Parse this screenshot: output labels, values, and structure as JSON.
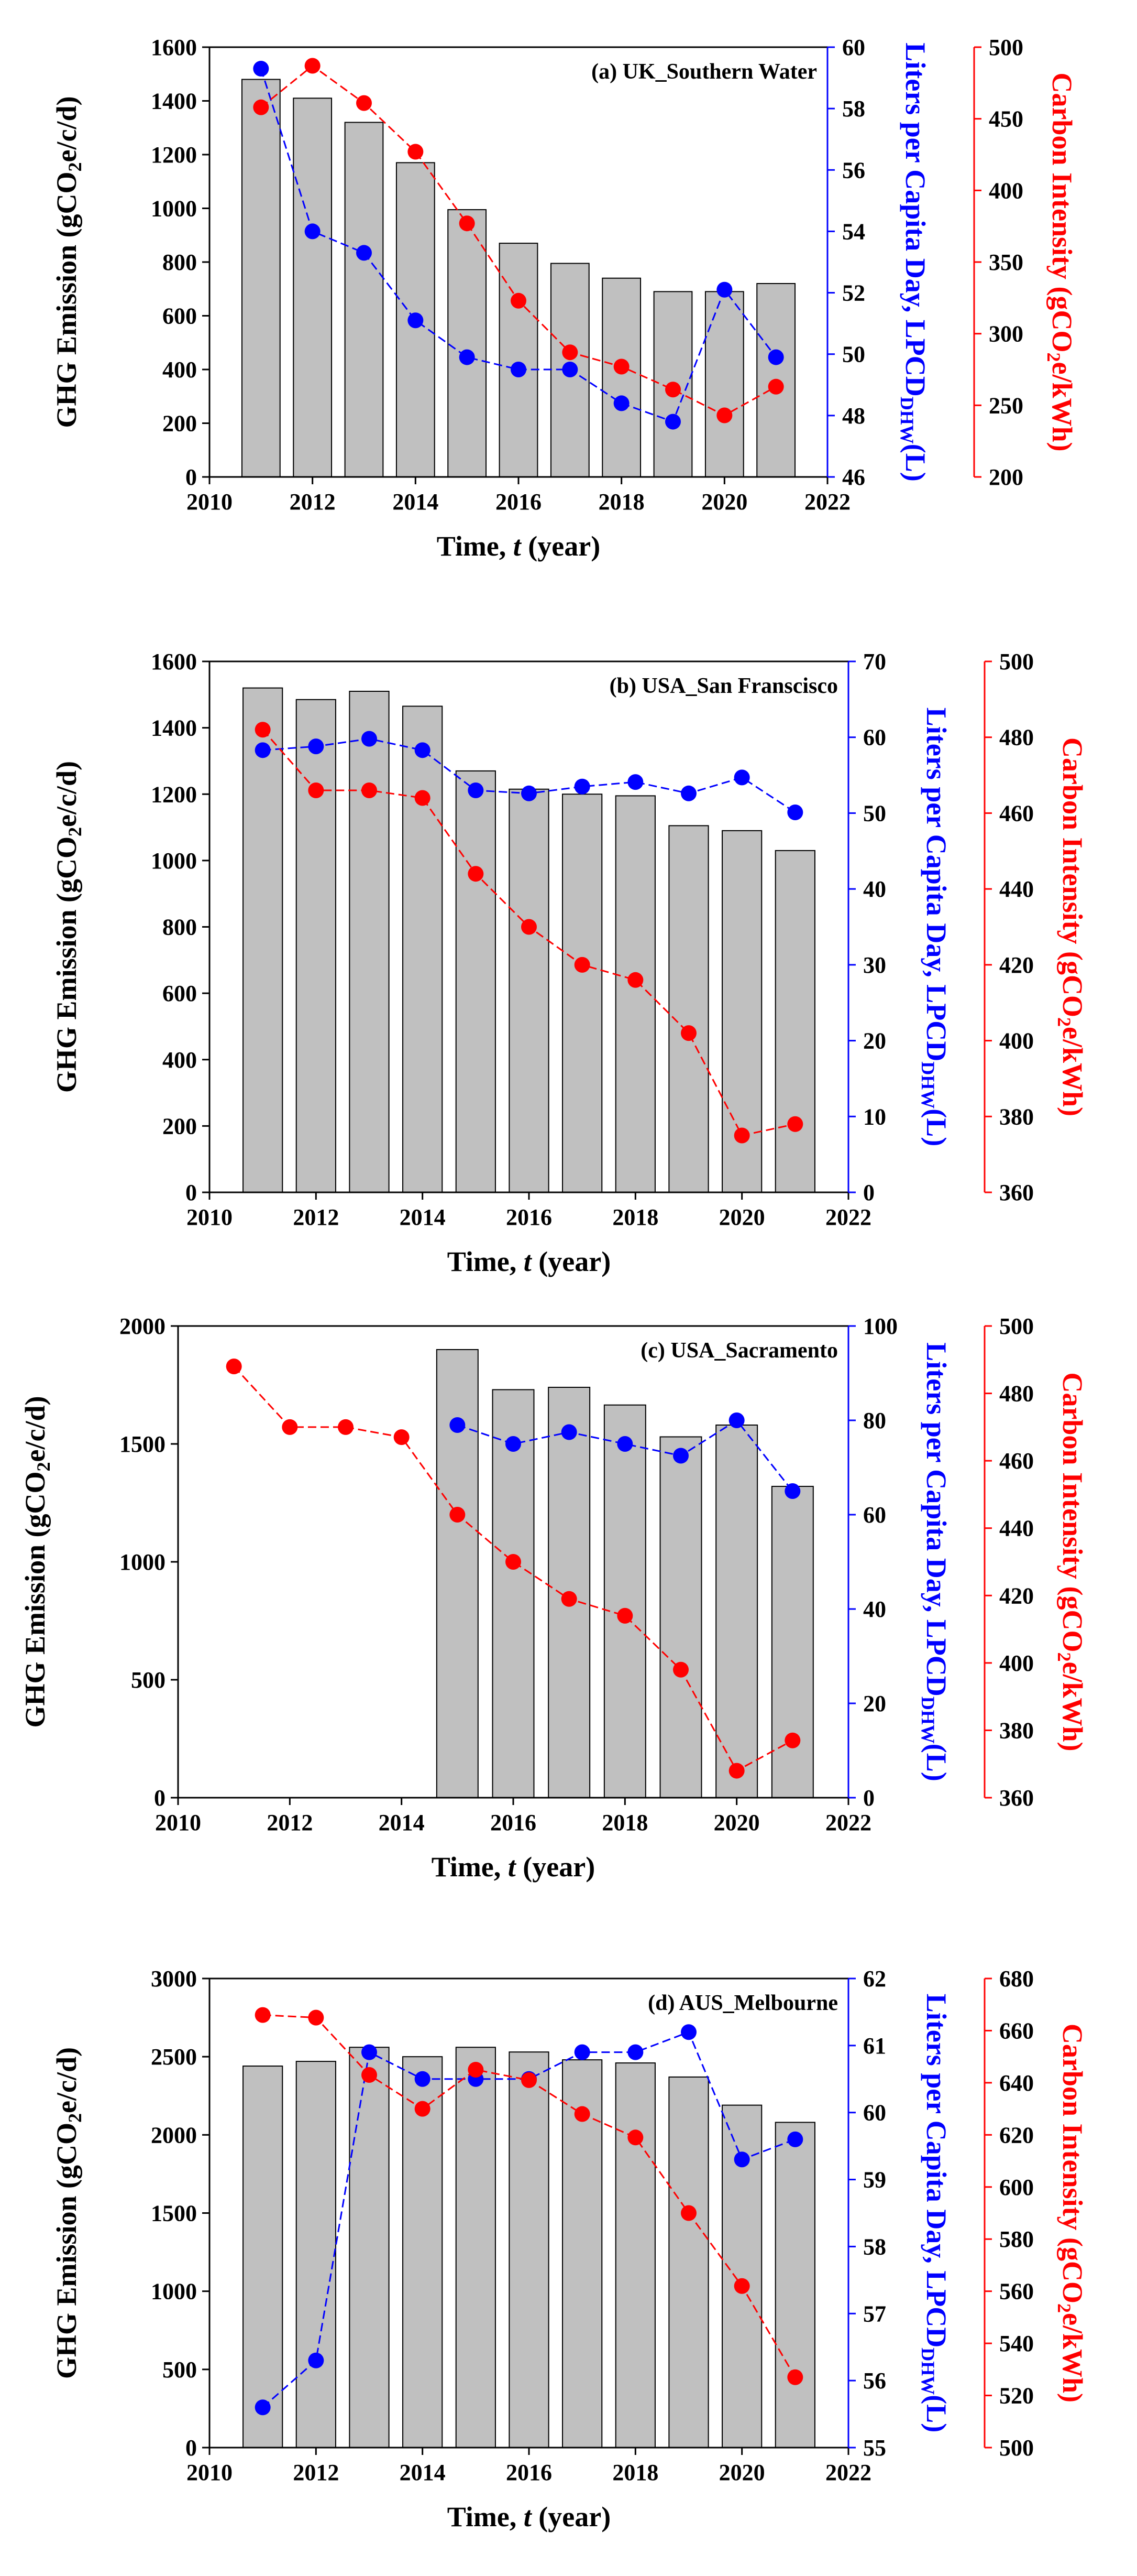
{
  "chart_data": [
    {
      "type": "bar",
      "title": "(a) UK_Southern Water",
      "xlabel": "Time, t (year)",
      "ylabel": "GHG Emission (gCO2e/c/d)",
      "y2label": "Liters per Capita Day, LPCDDHW(L)",
      "y3label": "Carbon Intensity (gCO2e/kWh)",
      "xlim": [
        2010,
        2022
      ],
      "xticks": [
        2010,
        2012,
        2014,
        2016,
        2018,
        2020,
        2022
      ],
      "ylim": [
        0,
        1600
      ],
      "yticks": [
        0,
        200,
        400,
        600,
        800,
        1000,
        1200,
        1400,
        1600
      ],
      "y2lim": [
        46,
        60
      ],
      "y2ticks": [
        46,
        48,
        50,
        52,
        54,
        56,
        58,
        60
      ],
      "y3lim": [
        200,
        500
      ],
      "y3ticks": [
        200,
        250,
        300,
        350,
        400,
        450,
        500
      ],
      "colors": {
        "bar": "#c0c0c0",
        "lpcd": "#0000ff",
        "intensity": "#ff0000"
      },
      "series": [
        {
          "name": "GHG Emission",
          "axis": "y",
          "x": [
            2011,
            2012,
            2013,
            2014,
            2015,
            2016,
            2017,
            2018,
            2019,
            2020,
            2021
          ],
          "values": [
            1480,
            1410,
            1320,
            1170,
            995,
            870,
            795,
            740,
            690,
            690,
            720
          ]
        },
        {
          "name": "LPCD",
          "axis": "y2",
          "x": [
            2011,
            2012,
            2013,
            2014,
            2015,
            2016,
            2017,
            2018,
            2019,
            2020,
            2021
          ],
          "values": [
            59.3,
            54.0,
            53.3,
            51.1,
            49.9,
            49.5,
            49.5,
            48.4,
            47.8,
            52.1,
            49.9
          ]
        },
        {
          "name": "Carbon Intensity",
          "axis": "y3",
          "x": [
            2011,
            2012,
            2013,
            2014,
            2015,
            2016,
            2017,
            2018,
            2019,
            2020,
            2021
          ],
          "values": [
            458,
            487,
            461,
            427,
            377,
            323,
            287,
            277,
            261,
            243,
            263
          ]
        }
      ]
    },
    {
      "type": "bar",
      "title": "(b) USA_San Franscisco",
      "xlabel": "Time, t (year)",
      "ylabel": "GHG Emission (gCO2e/c/d)",
      "y2label": "Liters per Capita Day, LPCDDHW(L)",
      "y3label": "Carbon Intensity (gCO2e/kWh)",
      "xlim": [
        2010,
        2022
      ],
      "xticks": [
        2010,
        2012,
        2014,
        2016,
        2018,
        2020,
        2022
      ],
      "ylim": [
        0,
        1600
      ],
      "yticks": [
        0,
        200,
        400,
        600,
        800,
        1000,
        1200,
        1400,
        1600
      ],
      "y2lim": [
        0,
        70
      ],
      "y2ticks": [
        0,
        10,
        20,
        30,
        40,
        50,
        60,
        70
      ],
      "y3lim": [
        360,
        500
      ],
      "y3ticks": [
        360,
        380,
        400,
        420,
        440,
        460,
        480,
        500
      ],
      "colors": {
        "bar": "#c0c0c0",
        "lpcd": "#0000ff",
        "intensity": "#ff0000"
      },
      "series": [
        {
          "name": "GHG Emission",
          "axis": "y",
          "x": [
            2011,
            2012,
            2013,
            2014,
            2015,
            2016,
            2017,
            2018,
            2019,
            2020,
            2021
          ],
          "values": [
            1520,
            1485,
            1510,
            1465,
            1270,
            1215,
            1200,
            1195,
            1105,
            1090,
            1030
          ]
        },
        {
          "name": "LPCD",
          "axis": "y2",
          "x": [
            2011,
            2012,
            2013,
            2014,
            2015,
            2016,
            2017,
            2018,
            2019,
            2020,
            2021
          ],
          "values": [
            58.3,
            58.8,
            59.8,
            58.3,
            53.0,
            52.6,
            53.5,
            54.1,
            52.6,
            54.7,
            50.1
          ]
        },
        {
          "name": "Carbon Intensity",
          "axis": "y3",
          "x": [
            2011,
            2012,
            2013,
            2014,
            2015,
            2016,
            2017,
            2018,
            2019,
            2020,
            2021
          ],
          "values": [
            482,
            466,
            466,
            464,
            444,
            430,
            420,
            416,
            402,
            375,
            378
          ]
        }
      ]
    },
    {
      "type": "bar",
      "title": "(c) USA_Sacramento",
      "xlabel": "Time, t (year)",
      "ylabel": "GHG Emission (gCO2e/c/d)",
      "y2label": "Liters per Capita Day, LPCDDHW(L)",
      "y3label": "Carbon Intensity (gCO2e/kWh)",
      "xlim": [
        2010,
        2022
      ],
      "xticks": [
        2010,
        2012,
        2014,
        2016,
        2018,
        2020,
        2022
      ],
      "ylim": [
        0,
        2000
      ],
      "yticks": [
        0,
        500,
        1000,
        1500,
        2000
      ],
      "y2lim": [
        0,
        100
      ],
      "y2ticks": [
        0,
        20,
        40,
        60,
        80,
        100
      ],
      "y3lim": [
        360,
        500
      ],
      "y3ticks": [
        360,
        380,
        400,
        420,
        440,
        460,
        480,
        500
      ],
      "colors": {
        "bar": "#c0c0c0",
        "lpcd": "#0000ff",
        "intensity": "#ff0000"
      },
      "series": [
        {
          "name": "GHG Emission",
          "axis": "y",
          "x": [
            2015,
            2016,
            2017,
            2018,
            2019,
            2020,
            2021
          ],
          "values": [
            1900,
            1730,
            1740,
            1665,
            1530,
            1580,
            1320
          ]
        },
        {
          "name": "LPCD",
          "axis": "y2",
          "x": [
            2015,
            2016,
            2017,
            2018,
            2019,
            2020,
            2021
          ],
          "values": [
            79.0,
            75.0,
            77.5,
            75.0,
            72.5,
            80.0,
            65.0
          ]
        },
        {
          "name": "Carbon Intensity",
          "axis": "y3",
          "x": [
            2011,
            2012,
            2013,
            2014,
            2015,
            2016,
            2017,
            2018,
            2019,
            2020,
            2021
          ],
          "values": [
            488,
            470,
            470,
            467,
            444,
            430,
            419,
            414,
            398,
            368,
            377
          ]
        }
      ]
    },
    {
      "type": "bar",
      "title": "(d) AUS_Melbourne",
      "xlabel": "Time, t (year)",
      "ylabel": "GHG Emission (gCO2e/c/d)",
      "y2label": "Liters per Capita Day, LPCDDHW(L)",
      "y3label": "Carbon Intensity (gCO2e/kWh)",
      "xlim": [
        2010,
        2022
      ],
      "xticks": [
        2010,
        2012,
        2014,
        2016,
        2018,
        2020,
        2022
      ],
      "ylim": [
        0,
        3000
      ],
      "yticks": [
        0,
        500,
        1000,
        1500,
        2000,
        2500,
        3000
      ],
      "y2lim": [
        55,
        62
      ],
      "y2ticks": [
        55,
        56,
        57,
        58,
        59,
        60,
        61,
        62
      ],
      "y3lim": [
        500,
        680
      ],
      "y3ticks": [
        500,
        520,
        540,
        560,
        580,
        600,
        620,
        640,
        660,
        680
      ],
      "colors": {
        "bar": "#c0c0c0",
        "lpcd": "#0000ff",
        "intensity": "#ff0000"
      },
      "series": [
        {
          "name": "GHG Emission",
          "axis": "y",
          "x": [
            2011,
            2012,
            2013,
            2014,
            2015,
            2016,
            2017,
            2018,
            2019,
            2020,
            2021
          ],
          "values": [
            2440,
            2470,
            2560,
            2500,
            2560,
            2530,
            2480,
            2460,
            2370,
            2190,
            2080
          ]
        },
        {
          "name": "LPCD",
          "axis": "y2",
          "x": [
            2011,
            2012,
            2013,
            2014,
            2015,
            2016,
            2017,
            2018,
            2019,
            2020,
            2021
          ],
          "values": [
            55.6,
            56.3,
            60.9,
            60.5,
            60.5,
            60.5,
            60.9,
            60.9,
            61.2,
            59.3,
            59.6
          ]
        },
        {
          "name": "Carbon Intensity",
          "axis": "y3",
          "x": [
            2011,
            2012,
            2013,
            2014,
            2015,
            2016,
            2017,
            2018,
            2019,
            2020,
            2021
          ],
          "values": [
            666,
            665,
            643,
            630,
            645,
            641,
            628,
            619,
            590,
            562,
            527
          ]
        }
      ]
    }
  ]
}
